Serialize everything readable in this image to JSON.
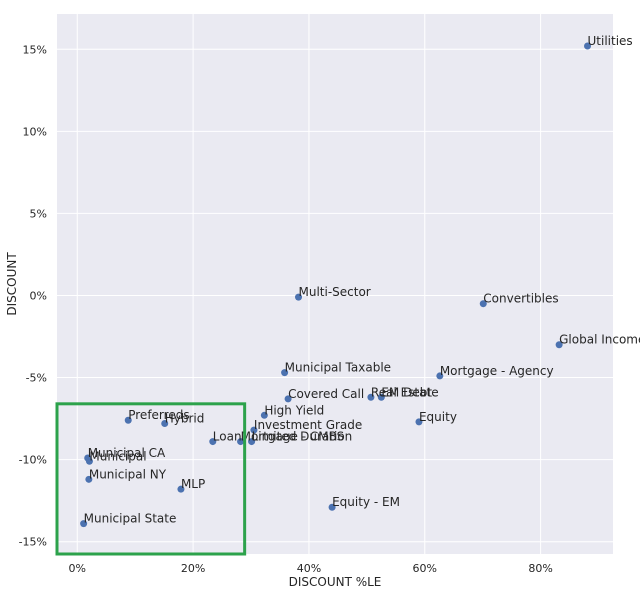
{
  "chart_data": {
    "type": "scatter",
    "title": "",
    "xlabel": "DISCOUNT %LE",
    "ylabel": "DISCOUNT",
    "xlim": [
      -0.035,
      0.925
    ],
    "ylim": [
      -0.1575,
      0.1715
    ],
    "grid": true,
    "point_color": "#4c72b0",
    "background_color": "#eaeaf2",
    "highlight_color": "#2ca24b",
    "xticks": [
      {
        "value": 0.0,
        "label": "0%"
      },
      {
        "value": 0.2,
        "label": "20%"
      },
      {
        "value": 0.4,
        "label": "40%"
      },
      {
        "value": 0.6,
        "label": "60%"
      },
      {
        "value": 0.8,
        "label": "80%"
      }
    ],
    "yticks": [
      {
        "value": 0.15,
        "label": "15%"
      },
      {
        "value": 0.1,
        "label": "10%"
      },
      {
        "value": 0.05,
        "label": "5%"
      },
      {
        "value": 0.0,
        "label": "0%"
      },
      {
        "value": -0.05,
        "label": "-5%"
      },
      {
        "value": -0.1,
        "label": "-10%"
      },
      {
        "value": -0.15,
        "label": "-15%"
      }
    ],
    "points": [
      {
        "label": "Utilities",
        "x": 0.881,
        "y": 0.152
      },
      {
        "label": "Global Income",
        "x": 0.832,
        "y": -0.03
      },
      {
        "label": "Convertibles",
        "x": 0.701,
        "y": -0.005
      },
      {
        "label": "Multi-Sector",
        "x": 0.382,
        "y": -0.001
      },
      {
        "label": "Mortgage - Agency",
        "x": 0.626,
        "y": -0.049
      },
      {
        "label": "Municipal Taxable",
        "x": 0.358,
        "y": -0.047
      },
      {
        "label": "Covered Call",
        "x": 0.364,
        "y": -0.063
      },
      {
        "label": "Real Estate",
        "x": 0.507,
        "y": -0.062
      },
      {
        "label": "EM Debt",
        "x": 0.525,
        "y": -0.062
      },
      {
        "label": "Equity",
        "x": 0.59,
        "y": -0.077
      },
      {
        "label": "High Yield",
        "x": 0.323,
        "y": -0.073
      },
      {
        "label": "Investment Grade",
        "x": 0.305,
        "y": -0.082
      },
      {
        "label": "Mortgage - CMBS",
        "x": 0.282,
        "y": -0.089
      },
      {
        "label": "Loan",
        "x": 0.234,
        "y": -0.089
      },
      {
        "label": "Limited Duration",
        "x": 0.301,
        "y": -0.089
      },
      {
        "label": "Preferreds",
        "x": 0.088,
        "y": -0.076
      },
      {
        "label": "Hybrid",
        "x": 0.151,
        "y": -0.078
      },
      {
        "label": "Municipal CA",
        "x": 0.018,
        "y": -0.099
      },
      {
        "label": "Municipal",
        "x": 0.021,
        "y": -0.101
      },
      {
        "label": "Municipal NY",
        "x": 0.02,
        "y": -0.112
      },
      {
        "label": "MLP",
        "x": 0.179,
        "y": -0.118
      },
      {
        "label": "Equity - EM",
        "x": 0.44,
        "y": -0.129
      },
      {
        "label": "Municipal State",
        "x": 0.011,
        "y": -0.139
      }
    ],
    "highlight_box": {
      "x_from": -0.035,
      "x_to": 0.289,
      "y_from": -0.1575,
      "y_to": -0.066
    }
  }
}
